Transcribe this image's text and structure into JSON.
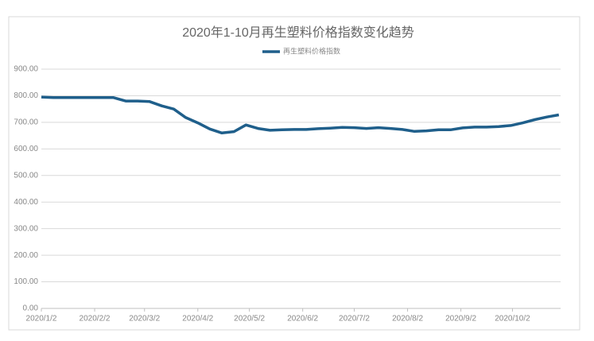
{
  "chart_data": {
    "type": "line",
    "title": "2020年1-10月再生塑料价格指数变化趋势",
    "x": [
      "2020/1/2",
      "2020/1/9",
      "2020/1/16",
      "2020/1/23",
      "2020/1/30",
      "2020/2/6",
      "2020/2/13",
      "2020/2/20",
      "2020/2/27",
      "2020/3/5",
      "2020/3/12",
      "2020/3/19",
      "2020/3/26",
      "2020/4/2",
      "2020/4/9",
      "2020/4/16",
      "2020/4/23",
      "2020/4/30",
      "2020/5/7",
      "2020/5/14",
      "2020/5/21",
      "2020/5/28",
      "2020/6/4",
      "2020/6/11",
      "2020/6/18",
      "2020/6/25",
      "2020/7/2",
      "2020/7/9",
      "2020/7/16",
      "2020/7/23",
      "2020/7/30",
      "2020/8/6",
      "2020/8/13",
      "2020/8/20",
      "2020/8/27",
      "2020/9/3",
      "2020/9/10",
      "2020/9/17",
      "2020/9/24",
      "2020/10/1",
      "2020/10/8",
      "2020/10/15",
      "2020/10/22",
      "2020/10/29"
    ],
    "series": [
      {
        "name": "再生塑料价格指数",
        "color": "#1f5f8b",
        "values": [
          795,
          793,
          793,
          793,
          793,
          793,
          793,
          780,
          780,
          778,
          762,
          750,
          718,
          698,
          675,
          660,
          665,
          690,
          677,
          670,
          672,
          673,
          673,
          676,
          678,
          681,
          680,
          677,
          680,
          677,
          673,
          666,
          668,
          672,
          672,
          679,
          682,
          682,
          684,
          688,
          698,
          710,
          720,
          728
        ]
      }
    ],
    "xlim": [
      "2020/1/2",
      "2020/10/30"
    ],
    "xticks": [
      "2020/1/2",
      "2020/2/2",
      "2020/3/2",
      "2020/4/2",
      "2020/5/2",
      "2020/6/2",
      "2020/7/2",
      "2020/8/2",
      "2020/9/2",
      "2020/10/2"
    ],
    "ylim": [
      0,
      900
    ],
    "yticks": [
      {
        "value": 0,
        "label": "0.00"
      },
      {
        "value": 100,
        "label": "100.00"
      },
      {
        "value": 200,
        "label": "200.00"
      },
      {
        "value": 300,
        "label": "300.00"
      },
      {
        "value": 400,
        "label": "400.00"
      },
      {
        "value": 500,
        "label": "500.00"
      },
      {
        "value": 600,
        "label": "600.00"
      },
      {
        "value": 700,
        "label": "700.00"
      },
      {
        "value": 800,
        "label": "800.00"
      },
      {
        "value": 900,
        "label": "900.00"
      }
    ],
    "grid": true,
    "legend": "top"
  }
}
